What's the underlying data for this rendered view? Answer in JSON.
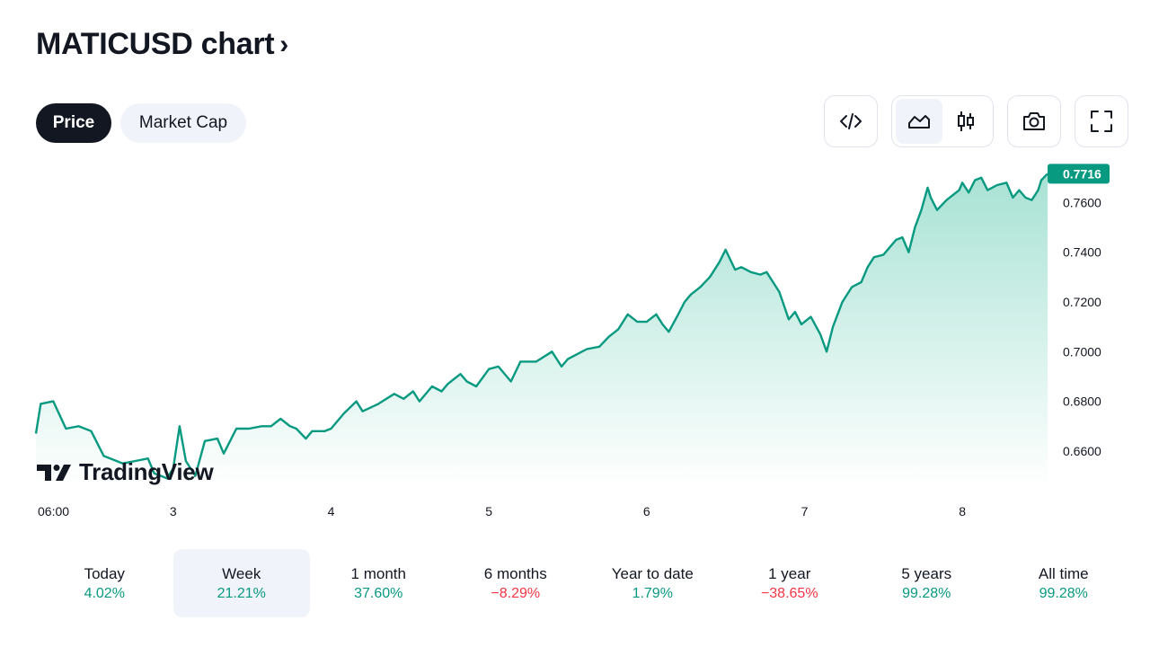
{
  "header": {
    "title": "MATICUSD chart",
    "chevron": "›"
  },
  "toggles": [
    {
      "label": "Price",
      "active": true
    },
    {
      "label": "Market Cap",
      "active": false
    }
  ],
  "toolbar": {
    "embed_icon": "code-embed-icon",
    "area_icon": "area-chart-icon",
    "candles_icon": "candlestick-icon",
    "camera_icon": "camera-icon",
    "fullscreen_icon": "fullscreen-icon",
    "active_style": "area"
  },
  "watermark": {
    "text": "TradingView"
  },
  "colors": {
    "line": "#089981",
    "fill_top": "#a8e2d4",
    "fill_bottom": "#ffffff",
    "positive": "#089981",
    "negative": "#f23645",
    "axis_text": "#131722",
    "active_bg": "#f0f3fa"
  },
  "chart_data": {
    "type": "area",
    "title": "MATICUSD chart",
    "x_tick_labels": [
      "06:00",
      "3",
      "4",
      "5",
      "6",
      "7",
      "8"
    ],
    "x_tick_days": [
      1.25,
      2,
      3,
      4,
      5,
      6,
      7
    ],
    "x_range_days": [
      1.13,
      7.54
    ],
    "y_ticks": [
      "0.6600",
      "0.6800",
      "0.7000",
      "0.7200",
      "0.7400",
      "0.7600"
    ],
    "ylim": [
      0.6455,
      0.7728
    ],
    "last_value": "0.7716",
    "grid": false,
    "series": [
      {
        "x_days": [
          1.13,
          1.16,
          1.24,
          1.32,
          1.4,
          1.48,
          1.56,
          1.68,
          1.76,
          1.84,
          1.88,
          1.96,
          2.0,
          2.04,
          2.08,
          2.14,
          2.2,
          2.28,
          2.32,
          2.36,
          2.4,
          2.48,
          2.56,
          2.62,
          2.68,
          2.74,
          2.78,
          2.84,
          2.88,
          2.96,
          3.0,
          3.08,
          3.16,
          3.2,
          3.3,
          3.4,
          3.46,
          3.52,
          3.56,
          3.64,
          3.7,
          3.74,
          3.82,
          3.86,
          3.92,
          4.0,
          4.06,
          4.14,
          4.2,
          4.3,
          4.4,
          4.46,
          4.5,
          4.56,
          4.62,
          4.7,
          4.76,
          4.82,
          4.88,
          4.94,
          5.0,
          5.06,
          5.1,
          5.14,
          5.2,
          5.24,
          5.28,
          5.34,
          5.4,
          5.46,
          5.5,
          5.56,
          5.6,
          5.66,
          5.72,
          5.76,
          5.84,
          5.9,
          5.94,
          5.98,
          6.04,
          6.1,
          6.14,
          6.18,
          6.24,
          6.3,
          6.36,
          6.4,
          6.44,
          6.5,
          6.54,
          6.58,
          6.62,
          6.66,
          6.7,
          6.74,
          6.78,
          6.8,
          6.84,
          6.9,
          6.94,
          6.98,
          7.0,
          7.04,
          7.08,
          7.12,
          7.16,
          7.22,
          7.28,
          7.32,
          7.36,
          7.4,
          7.44,
          7.48,
          7.5,
          7.54
        ],
        "values": [
          0.667,
          0.679,
          0.68,
          0.669,
          0.67,
          0.668,
          0.658,
          0.655,
          0.656,
          0.657,
          0.651,
          0.649,
          0.653,
          0.67,
          0.656,
          0.65,
          0.664,
          0.665,
          0.659,
          0.664,
          0.669,
          0.669,
          0.67,
          0.67,
          0.673,
          0.67,
          0.669,
          0.665,
          0.668,
          0.668,
          0.669,
          0.675,
          0.68,
          0.676,
          0.679,
          0.683,
          0.681,
          0.684,
          0.68,
          0.686,
          0.684,
          0.687,
          0.691,
          0.688,
          0.686,
          0.693,
          0.694,
          0.688,
          0.696,
          0.696,
          0.7,
          0.694,
          0.697,
          0.699,
          0.701,
          0.702,
          0.706,
          0.709,
          0.715,
          0.712,
          0.712,
          0.715,
          0.711,
          0.708,
          0.715,
          0.72,
          0.723,
          0.726,
          0.73,
          0.736,
          0.741,
          0.733,
          0.734,
          0.732,
          0.731,
          0.732,
          0.724,
          0.713,
          0.716,
          0.711,
          0.714,
          0.707,
          0.7,
          0.71,
          0.72,
          0.726,
          0.728,
          0.734,
          0.738,
          0.739,
          0.742,
          0.745,
          0.746,
          0.74,
          0.75,
          0.757,
          0.766,
          0.762,
          0.757,
          0.761,
          0.763,
          0.765,
          0.768,
          0.764,
          0.769,
          0.77,
          0.765,
          0.767,
          0.768,
          0.762,
          0.765,
          0.762,
          0.761,
          0.765,
          0.769,
          0.7716
        ]
      }
    ]
  },
  "periods": [
    {
      "label": "Today",
      "value": "4.02%",
      "sign": "positive",
      "active": false
    },
    {
      "label": "Week",
      "value": "21.21%",
      "sign": "positive",
      "active": true
    },
    {
      "label": "1 month",
      "value": "37.60%",
      "sign": "positive",
      "active": false
    },
    {
      "label": "6 months",
      "value": "−8.29%",
      "sign": "negative",
      "active": false
    },
    {
      "label": "Year to date",
      "value": "1.79%",
      "sign": "positive",
      "active": false
    },
    {
      "label": "1 year",
      "value": "−38.65%",
      "sign": "negative",
      "active": false
    },
    {
      "label": "5 years",
      "value": "99.28%",
      "sign": "positive",
      "active": false
    },
    {
      "label": "All time",
      "value": "99.28%",
      "sign": "positive",
      "active": false
    }
  ]
}
